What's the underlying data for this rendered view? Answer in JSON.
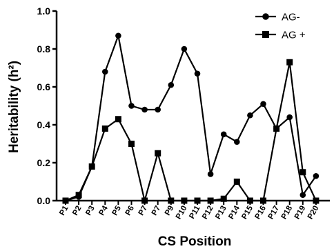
{
  "chart_data": {
    "type": "line",
    "categories": [
      "P1",
      "P2",
      "P3",
      "P4",
      "P5",
      "P6",
      "P7",
      "P7",
      "P9",
      "P10",
      "P11",
      "P12",
      "P13",
      "P14",
      "P15",
      "P16",
      "P17",
      "P18",
      "P19",
      "P20"
    ],
    "series": [
      {
        "name": "AG-",
        "marker": "circle",
        "values": [
          0,
          0.02,
          0.18,
          0.68,
          0.87,
          0.5,
          0.48,
          0.48,
          0.61,
          0.8,
          0.67,
          0.14,
          0.35,
          0.31,
          0.45,
          0.51,
          0.38,
          0.44,
          0.03,
          0.13
        ]
      },
      {
        "name": "AG +",
        "marker": "square",
        "values": [
          0,
          0.03,
          0.18,
          0.38,
          0.43,
          0.3,
          0,
          0.25,
          0,
          0,
          0,
          0,
          0.01,
          0.1,
          0,
          0,
          0.38,
          0.73,
          0.15,
          0
        ]
      }
    ],
    "title": "",
    "xlabel": "CS Position",
    "ylabel": "Heritability (h²)",
    "ylim": [
      0,
      1.0
    ],
    "yticks": [
      "0.0",
      "0.2",
      "0.4",
      "0.6",
      "0.8",
      "1.0"
    ],
    "grid": false,
    "legend": "top-right",
    "colors": {
      "line": "#000000"
    }
  }
}
